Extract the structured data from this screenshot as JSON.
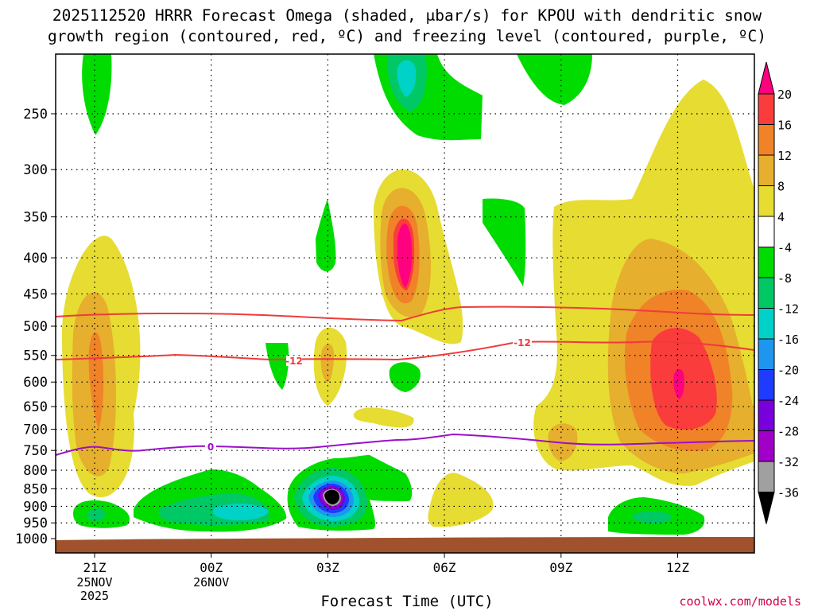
{
  "title_line1": "2025112520 HRRR Forecast Omega (shaded, μbar/s) for KPOU with dendritic snow",
  "title_line2": "growth region (contoured, red, ºC) and freezing level (contoured, purple, ºC)",
  "credit": "coolwx.com/models",
  "chart_data": {
    "type": "time-height contour",
    "title": "2025112520 HRRR Forecast Omega (shaded, μbar/s) for KPOU with dendritic snow growth region (contoured, red, ºC) and freezing level (contoured, purple, ºC)",
    "xlabel": "Forecast Time (UTC)",
    "ylabel": "",
    "x_ticks": [
      {
        "label": "21Z",
        "sub": [
          "25NOV",
          "2025"
        ]
      },
      {
        "label": "00Z",
        "sub": [
          "26NOV"
        ]
      },
      {
        "label": "03Z",
        "sub": []
      },
      {
        "label": "06Z",
        "sub": []
      },
      {
        "label": "09Z",
        "sub": []
      },
      {
        "label": "12Z",
        "sub": []
      }
    ],
    "y_ticks": [
      250,
      300,
      350,
      400,
      450,
      500,
      550,
      600,
      650,
      700,
      750,
      800,
      850,
      900,
      950,
      1000
    ],
    "ylim": [
      1000,
      200
    ],
    "colorbar": {
      "levels": [
        20,
        16,
        12,
        8,
        4,
        -4,
        -8,
        -12,
        -16,
        -20,
        -24,
        -28,
        -32,
        -36
      ],
      "colors": [
        "#ff0080",
        "#fa3c3c",
        "#f08228",
        "#e6af2d",
        "#e6dc32",
        "#ffffff",
        "#00dc00",
        "#00c864",
        "#00d2c8",
        "#1e96f0",
        "#1e3cff",
        "#7800dc",
        "#a000c8",
        "#a0a0a0",
        "#000000"
      ]
    },
    "contours": [
      {
        "name": "dendritic-top",
        "label": "",
        "color": "#ef3b3b",
        "units": "ºC"
      },
      {
        "name": "dendritic-bottom",
        "label": "-12",
        "color": "#ef3b3b",
        "units": "ºC"
      },
      {
        "name": "freezing-level",
        "label": "0",
        "color": "#9a10c8",
        "units": "ºC"
      }
    ]
  }
}
